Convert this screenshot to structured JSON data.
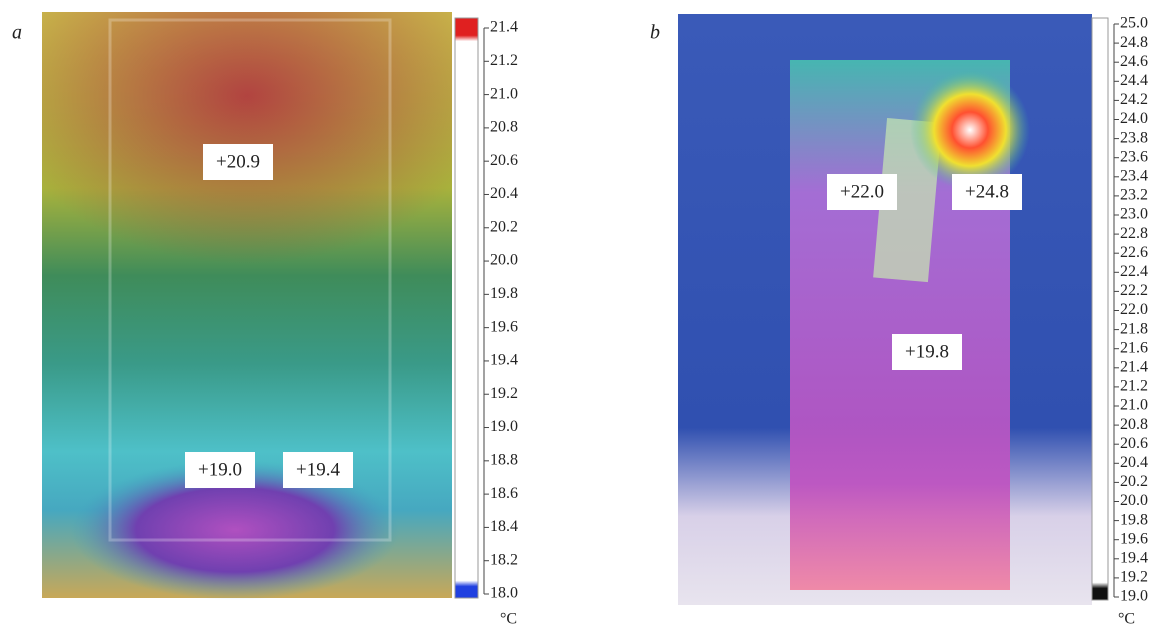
{
  "panels": [
    {
      "label": "a",
      "annotations": [
        "+20.9",
        "+19.0",
        "+19.4"
      ],
      "scale": {
        "ticks": [
          "21.4",
          "21.2",
          "21.0",
          "20.8",
          "20.6",
          "20.4",
          "20.2",
          "20.0",
          "19.8",
          "19.6",
          "19.4",
          "19.2",
          "19.0",
          "18.8",
          "18.6",
          "18.4",
          "18.2",
          "18.0"
        ],
        "unit": "°C"
      }
    },
    {
      "label": "b",
      "annotations": [
        "+22.0",
        "+24.8",
        "+19.8"
      ],
      "scale": {
        "ticks": [
          "25.0",
          "24.8",
          "24.6",
          "24.4",
          "24.2",
          "24.0",
          "23.8",
          "23.6",
          "23.4",
          "23.2",
          "23.0",
          "22.8",
          "22.6",
          "22.4",
          "22.2",
          "22.0",
          "21.8",
          "21.6",
          "21.4",
          "21.2",
          "21.0",
          "20.8",
          "20.6",
          "20.4",
          "20.2",
          "20.0",
          "19.8",
          "19.6",
          "19.4",
          "19.2",
          "19.0"
        ],
        "unit": "°C"
      }
    }
  ]
}
